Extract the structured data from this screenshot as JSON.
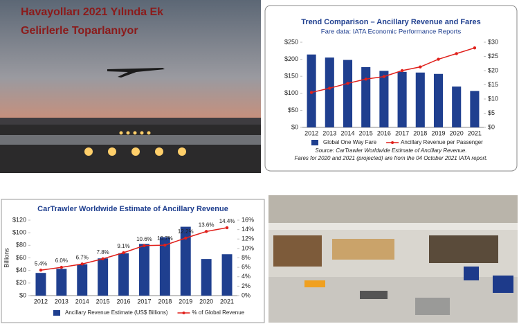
{
  "headline": [
    "Havayolları 2021 Yılında Ek",
    "Gelirlerle Toparlanıyor"
  ],
  "chart_data": [
    {
      "type": "bar",
      "title": "Trend Comparison – Ancillary Revenue and Fares",
      "subtitle": "Fare data: IATA Economic Performance Reports",
      "categories": [
        "2012",
        "2013",
        "2014",
        "2015",
        "2016",
        "2017",
        "2018",
        "2019",
        "2020",
        "2021"
      ],
      "series": [
        {
          "name": "Global One Way Fare",
          "type": "bar",
          "color": "#1f3f8f",
          "values": [
            214,
            205,
            198,
            177,
            166,
            163,
            161,
            157,
            120,
            107
          ]
        },
        {
          "name": "Ancillary Revenue per Passenger",
          "type": "line",
          "axis": "y2",
          "color": "#e0201b",
          "values": [
            12.3,
            13.8,
            15.5,
            17,
            17.9,
            20,
            21.3,
            24,
            26,
            28
          ]
        }
      ],
      "ylim": [
        0,
        250
      ],
      "yticks": [
        {
          "value": 0,
          "label": "$0"
        },
        {
          "value": 50,
          "label": "$50"
        },
        {
          "value": 100,
          "label": "$100"
        },
        {
          "value": 150,
          "label": "$150"
        },
        {
          "value": 200,
          "label": "$200"
        },
        {
          "value": 250,
          "label": "$250"
        }
      ],
      "y2lim": [
        0,
        30
      ],
      "y2ticks": [
        {
          "value": 0,
          "label": "$0"
        },
        {
          "value": 5,
          "label": "$5"
        },
        {
          "value": 10,
          "label": "$10"
        },
        {
          "value": 15,
          "label": "$15"
        },
        {
          "value": 20,
          "label": "$20"
        },
        {
          "value": 25,
          "label": "$25"
        },
        {
          "value": 30,
          "label": "$30"
        }
      ],
      "legend": "bottom",
      "notes": [
        "Source: CarTrawler Worldwide Estimate of Ancillary Revenue.",
        "Fares for 2020 and 2021 (projected) are from the 04 October 2021 IATA report."
      ]
    },
    {
      "type": "bar",
      "title": "CarTrawler Worldwide Estimate of Ancillary Revenue",
      "ylabel": "Billions",
      "categories": [
        "2012",
        "2013",
        "2014",
        "2015",
        "2016",
        "2017",
        "2018",
        "2019",
        "2020",
        "2021"
      ],
      "series": [
        {
          "name": "Ancillary Revenue Estimate (US$ Billions)",
          "type": "bar",
          "color": "#1f3f8f",
          "values": [
            36.1,
            42.6,
            49.9,
            59.2,
            67.4,
            82.2,
            92.9,
            109.5,
            58.2,
            65.8
          ]
        },
        {
          "name": "% of Global Revenue",
          "type": "line",
          "axis": "y2",
          "color": "#e0201b",
          "values": [
            5.4,
            6.0,
            6.7,
            7.8,
            9.1,
            10.6,
            10.7,
            12.2,
            13.6,
            14.4
          ],
          "value_labels": [
            "5.4%",
            "6.0%",
            "6.7%",
            "7.8%",
            "9.1%",
            "10.6%",
            "10.7%",
            "12.2%",
            "13.6%",
            "14.4%"
          ]
        }
      ],
      "ylim": [
        0,
        120
      ],
      "yticks": [
        {
          "value": 0,
          "label": "$0"
        },
        {
          "value": 20,
          "label": "$20"
        },
        {
          "value": 40,
          "label": "$40"
        },
        {
          "value": 60,
          "label": "$60"
        },
        {
          "value": 80,
          "label": "$80"
        },
        {
          "value": 100,
          "label": "$100"
        },
        {
          "value": 120,
          "label": "$120"
        }
      ],
      "y2lim": [
        0,
        16
      ],
      "y2ticks": [
        {
          "value": 0,
          "label": "0%"
        },
        {
          "value": 2,
          "label": "2%"
        },
        {
          "value": 4,
          "label": "4%"
        },
        {
          "value": 6,
          "label": "6%"
        },
        {
          "value": 8,
          "label": "8%"
        },
        {
          "value": 10,
          "label": "10%"
        },
        {
          "value": 12,
          "label": "12%"
        },
        {
          "value": 14,
          "label": "14%"
        },
        {
          "value": 16,
          "label": "16%"
        }
      ],
      "legend": "bottom"
    }
  ]
}
